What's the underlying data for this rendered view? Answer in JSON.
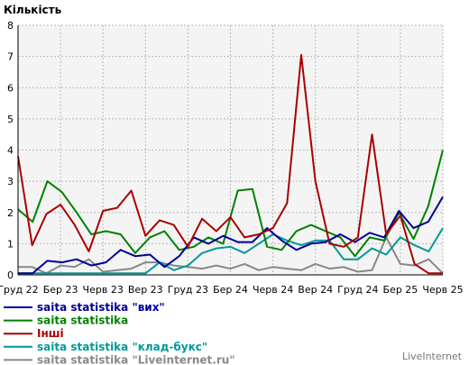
{
  "chart_data": {
    "type": "line",
    "title": "Кількість",
    "ylim": [
      0,
      8
    ],
    "yticks": [
      0,
      1,
      2,
      3,
      4,
      5,
      6,
      7,
      8
    ],
    "grid": true,
    "legend_position": "bottom-left",
    "x_tick_labels": [
      "Груд 22",
      "Бер 23",
      "Черв 23",
      "Вер 23",
      "Груд 23",
      "Бер 24",
      "Черв 24",
      "Вер 24",
      "Груд 24",
      "Бер 25",
      "Черв 25"
    ],
    "point_count": 58,
    "series": [
      {
        "name": "saita statistika \"вих\"",
        "color": "#000099",
        "values": [
          0.05,
          0.05,
          0.45,
          0.4,
          0.5,
          0.3,
          0.4,
          0.8,
          0.6,
          0.65,
          0.25,
          0.6,
          1.2,
          1.0,
          1.25,
          1.05,
          1.05,
          1.5,
          1.1,
          0.8,
          1.0,
          1.05,
          1.3,
          1.05,
          1.35,
          1.2,
          2.05,
          1.5,
          1.7,
          2.5
        ]
      },
      {
        "name": "saita statistika",
        "color": "#008000",
        "values": [
          2.1,
          1.7,
          3.0,
          2.65,
          2.0,
          1.3,
          1.4,
          1.3,
          0.7,
          1.2,
          1.4,
          0.8,
          0.9,
          1.2,
          1.0,
          2.7,
          2.75,
          0.9,
          0.8,
          1.4,
          1.6,
          1.4,
          1.2,
          0.6,
          1.2,
          1.1,
          2.0,
          1.15,
          2.2,
          4.0
        ]
      },
      {
        "name": "Інші",
        "color": "#aa0000",
        "values": [
          3.8,
          0.95,
          1.95,
          2.25,
          1.6,
          0.75,
          2.05,
          2.15,
          2.7,
          1.25,
          1.75,
          1.6,
          0.9,
          1.8,
          1.4,
          1.85,
          1.2,
          1.3,
          1.5,
          2.3,
          7.05,
          3.0,
          1.0,
          0.9,
          1.2,
          4.5,
          1.3,
          1.9,
          0.35,
          0.05,
          0.05
        ]
      },
      {
        "name": "saita statistika \"клад-букс\"",
        "color": "#009999",
        "values": [
          0.05,
          0.05,
          0.05,
          0.05,
          0.05,
          0.05,
          0.05,
          0.05,
          0.05,
          0.05,
          0.4,
          0.15,
          0.3,
          0.7,
          0.85,
          0.9,
          0.7,
          1.0,
          1.3,
          1.1,
          0.95,
          1.1,
          1.1,
          0.5,
          0.5,
          0.85,
          0.65,
          1.2,
          0.95,
          0.75,
          1.5
        ]
      },
      {
        "name": "saita statistika \"Liveinternet.ru\"",
        "color": "#888888",
        "values": [
          0.25,
          0.25,
          0.05,
          0.3,
          0.25,
          0.5,
          0.1,
          0.15,
          0.2,
          0.4,
          0.4,
          0.3,
          0.25,
          0.2,
          0.3,
          0.2,
          0.35,
          0.15,
          0.25,
          0.2,
          0.15,
          0.35,
          0.2,
          0.25,
          0.1,
          0.15,
          1.2,
          0.35,
          0.3,
          0.5,
          0.05
        ]
      }
    ]
  },
  "footer": {
    "brand": "LiveInternet"
  }
}
